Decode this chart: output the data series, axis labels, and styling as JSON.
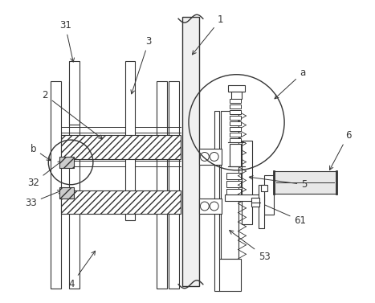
{
  "bg_color": "#ffffff",
  "lc": "#333333",
  "figsize": [
    4.67,
    3.77
  ],
  "dpi": 100,
  "label_fs": 8.5
}
